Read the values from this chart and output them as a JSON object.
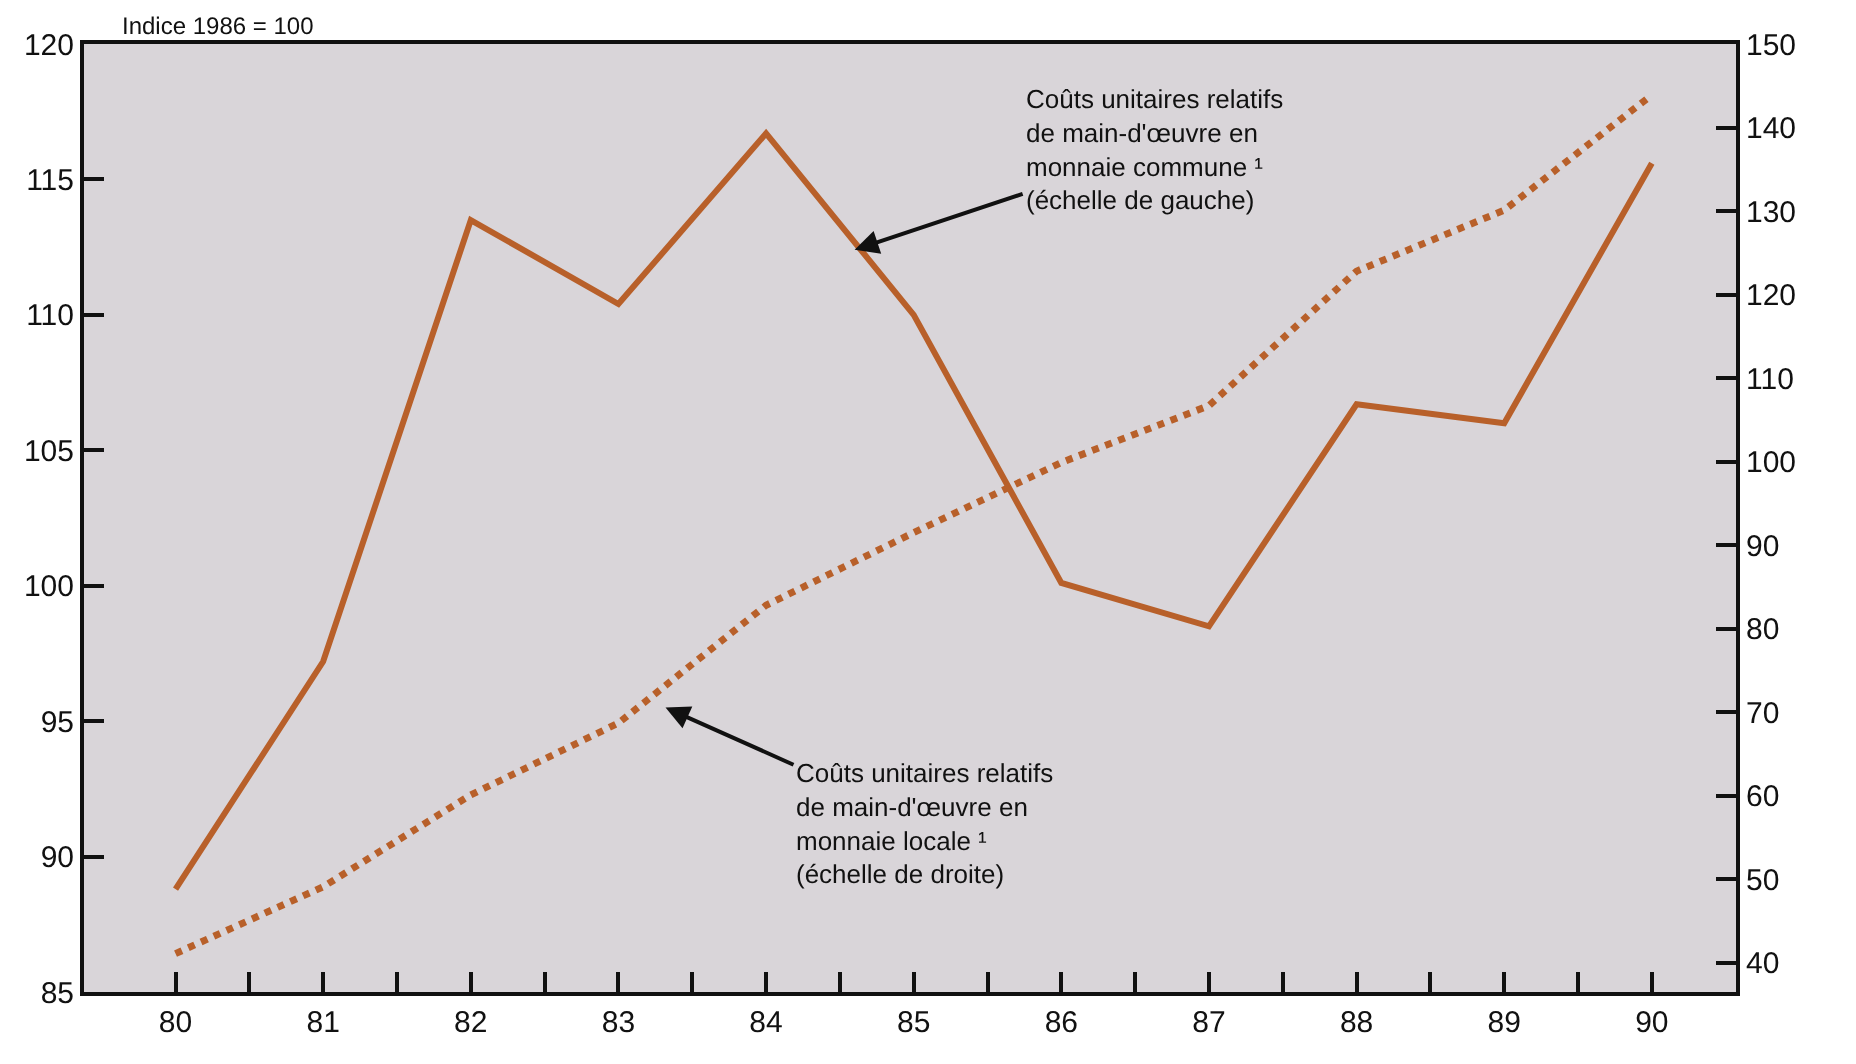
{
  "chart_data": {
    "type": "line",
    "ylabel": "Indice 1986 = 100",
    "x": [
      80,
      81,
      82,
      83,
      84,
      85,
      86,
      87,
      88,
      89,
      90
    ],
    "series": [
      {
        "color": "#b8602a",
        "line_style": "solid",
        "values": [
          88.8,
          97.2,
          113.5,
          110.4,
          116.7,
          110.0,
          100.1,
          98.5,
          106.7,
          106.0,
          115.6
        ]
      },
      {
        "color": "#b8602a",
        "line_style": "dotted",
        "axis": "y2",
        "values": [
          41.1,
          49.1,
          60.1,
          68.7,
          82.8,
          91.5,
          99.9,
          106.7,
          122.8,
          130.1,
          143.9
        ]
      }
    ],
    "xlim": [
      79.38,
      90.57
    ],
    "xticks": [
      80,
      {
        "value": 80.5,
        "label": null
      },
      81,
      {
        "value": 81.5,
        "label": null
      },
      82,
      {
        "value": 82.5,
        "label": null
      },
      83,
      {
        "value": 83.5,
        "label": null
      },
      84,
      {
        "value": 84.5,
        "label": null
      },
      85,
      {
        "value": 85.5,
        "label": null
      },
      86,
      {
        "value": 86.5,
        "label": null
      },
      87,
      {
        "value": 87.5,
        "label": null
      },
      88,
      {
        "value": 88.5,
        "label": null
      },
      89,
      {
        "value": 89.5,
        "label": null
      },
      90
    ],
    "ylim": [
      85,
      120
    ],
    "yticks": [
      85,
      90,
      95,
      100,
      105,
      110,
      115,
      120
    ],
    "y2lim": [
      36.5,
      150
    ],
    "y2ticks": [
      40,
      50,
      60,
      70,
      80,
      90,
      100,
      110,
      120,
      130,
      140,
      150
    ],
    "annotations": [
      {
        "text": "Coûts unitaires relatifs\nde main-d'œuvre en\nmonnaie commune ¹\n(échelle de gauche)",
        "x": 84.6,
        "y": 112.4
      },
      "Coûts unitaires relatifs\nde main-d'œuvre en\nmonnaie locale ¹\n(échelle de droite)"
    ],
    "grid": false
  }
}
